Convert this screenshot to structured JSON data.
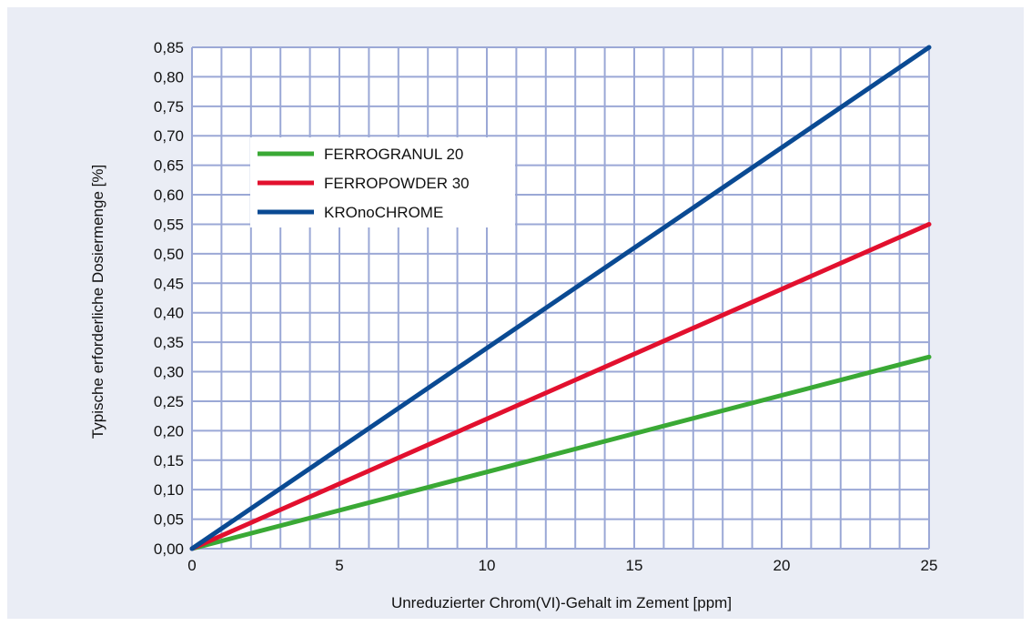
{
  "chart_data": {
    "type": "line",
    "xlabel": "Unreduzierter Chrom(VI)-Gehalt im Zement [ppm]",
    "ylabel": "Typische erforderliche Dosiermenge [%]",
    "xlim": [
      0,
      25
    ],
    "ylim": [
      0,
      0.85
    ],
    "x_ticks": [
      0,
      5,
      10,
      15,
      20,
      25
    ],
    "x_tick_labels": [
      "0",
      "5",
      "10",
      "15",
      "20",
      "25"
    ],
    "y_ticks": [
      0,
      0.05,
      0.1,
      0.15,
      0.2,
      0.25,
      0.3,
      0.35,
      0.4,
      0.45,
      0.5,
      0.55,
      0.6,
      0.65,
      0.7,
      0.75,
      0.8,
      0.85
    ],
    "y_tick_labels": [
      "0,00",
      "0,05",
      "0,10",
      "0,15",
      "0,20",
      "0,25",
      "0,30",
      "0,35",
      "0,40",
      "0,45",
      "0,50",
      "0,55",
      "0,60",
      "0,65",
      "0,70",
      "0,75",
      "0,80",
      "0,85"
    ],
    "grid": true,
    "legend_position": "upper-left",
    "series": [
      {
        "name": "FERROGRANUL 20",
        "color": "#3aa935",
        "x": [
          0,
          25
        ],
        "y": [
          0,
          0.325
        ]
      },
      {
        "name": "FERROPOWDER 30",
        "color": "#e2102e",
        "x": [
          0,
          25
        ],
        "y": [
          0,
          0.55
        ]
      },
      {
        "name": "KROnoCHROME",
        "color": "#0a4a93",
        "x": [
          0,
          25
        ],
        "y": [
          0,
          0.85
        ]
      }
    ]
  },
  "colors": {
    "background": "#eaedf5",
    "plot_background": "#ffffff",
    "grid": "#9ba8d6"
  }
}
